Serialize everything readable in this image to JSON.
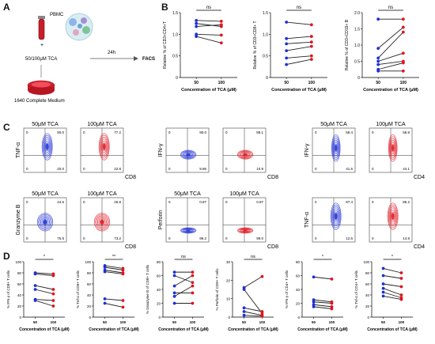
{
  "panels": {
    "A": "A",
    "B": "B",
    "C": "C",
    "D": "D"
  },
  "schematic": {
    "pbmc": "PBMC",
    "plus": "+",
    "tca": "50/100μM TCA",
    "medium": "1640 Complete Medium",
    "time": "24h",
    "facs": "FACS"
  },
  "colors": {
    "low": "#1f2fd6",
    "high": "#e0141e",
    "line": "#222222"
  },
  "chart_data": [
    {
      "type": "line",
      "panel": "B",
      "ylabel": "Relative % of CD3+CD4+T",
      "xlabel": "Concentration of TCA (μM)",
      "categories": [
        "50",
        "100"
      ],
      "ylim": [
        0,
        1.5
      ],
      "yticks": [
        "0",
        "0.5",
        "1.0",
        "1.5"
      ],
      "sig": "ns",
      "series": [
        {
          "values": [
            1.32,
            1.3
          ]
        },
        {
          "values": [
            1.25,
            1.18
          ]
        },
        {
          "values": [
            1.18,
            1.22
          ]
        },
        {
          "values": [
            1.0,
            0.98
          ]
        },
        {
          "values": [
            0.95,
            0.8
          ]
        }
      ]
    },
    {
      "type": "line",
      "panel": "B",
      "ylabel": "Relative % of CD3+CD8+ T",
      "xlabel": "Concentration of TCA (μM)",
      "categories": [
        "50",
        "100"
      ],
      "ylim": [
        0,
        1.5
      ],
      "yticks": [
        "0",
        "0.5",
        "1.0",
        "1.5"
      ],
      "sig": "ns",
      "series": [
        {
          "values": [
            1.28,
            1.22
          ]
        },
        {
          "values": [
            0.9,
            0.95
          ]
        },
        {
          "values": [
            0.78,
            0.82
          ]
        },
        {
          "values": [
            0.62,
            0.72
          ]
        },
        {
          "values": [
            0.45,
            0.5
          ]
        },
        {
          "values": [
            0.3,
            0.42
          ]
        }
      ]
    },
    {
      "type": "line",
      "panel": "B",
      "ylabel": "Relative % of CD3+CD19+ B",
      "xlabel": "Concentration of TCA (μM)",
      "categories": [
        "50",
        "100"
      ],
      "ylim": [
        0,
        2.0
      ],
      "yticks": [
        "0",
        "0.5",
        "1.0",
        "1.5",
        "2.0"
      ],
      "sig": "ns",
      "series": [
        {
          "values": [
            1.8,
            1.8
          ]
        },
        {
          "values": [
            0.9,
            1.55
          ]
        },
        {
          "values": [
            0.6,
            1.4
          ]
        },
        {
          "values": [
            0.5,
            0.75
          ]
        },
        {
          "values": [
            0.4,
            0.5
          ]
        },
        {
          "values": [
            0.25,
            0.45
          ]
        },
        {
          "values": [
            0.2,
            0.2
          ]
        }
      ]
    },
    {
      "type": "line",
      "panel": "D",
      "ylabel": "% IFN-γ of CD8+ T cells",
      "xlabel": "Concentration of TCA (μM)",
      "categories": [
        "50",
        "100"
      ],
      "ylim": [
        0,
        100
      ],
      "yticks": [
        "0",
        "20",
        "40",
        "60",
        "80",
        "100"
      ],
      "sig": "*",
      "series": [
        {
          "values": [
            80,
            78
          ]
        },
        {
          "values": [
            78,
            75
          ]
        },
        {
          "values": [
            57,
            50
          ]
        },
        {
          "values": [
            50,
            42
          ]
        },
        {
          "values": [
            32,
            30
          ]
        },
        {
          "values": [
            30,
            20
          ]
        }
      ]
    },
    {
      "type": "line",
      "panel": "D",
      "ylabel": "% Tnf-α of CD8+ T cells",
      "xlabel": "Concentration of TCA (μM)",
      "categories": [
        "50",
        "100"
      ],
      "ylim": [
        0,
        100
      ],
      "yticks": [
        "0",
        "20",
        "40",
        "60",
        "80",
        "100"
      ],
      "sig": "**",
      "series": [
        {
          "values": [
            93,
            88
          ]
        },
        {
          "values": [
            90,
            85
          ]
        },
        {
          "values": [
            85,
            80
          ]
        },
        {
          "values": [
            82,
            78
          ]
        },
        {
          "values": [
            33,
            30
          ]
        },
        {
          "values": [
            25,
            18
          ]
        }
      ]
    },
    {
      "type": "line",
      "panel": "D",
      "ylabel": "% Granzyme B of CD8+ T cells",
      "xlabel": "Concentration of TCA (μM)",
      "categories": [
        "50",
        "100"
      ],
      "ylim": [
        0,
        80
      ],
      "yticks": [
        "0",
        "20",
        "40",
        "60",
        "80"
      ],
      "sig": "ns",
      "series": [
        {
          "values": [
            65,
            65
          ]
        },
        {
          "values": [
            60,
            50
          ]
        },
        {
          "values": [
            45,
            60
          ]
        },
        {
          "values": [
            35,
            35
          ]
        },
        {
          "values": [
            30,
            45
          ]
        },
        {
          "values": [
            20,
            20
          ]
        }
      ]
    },
    {
      "type": "line",
      "panel": "D",
      "ylabel": "% Perforin of CD8+ T cells",
      "xlabel": "Concentration of TCA (μM)",
      "categories": [
        "50",
        "100"
      ],
      "ylim": [
        0,
        30
      ],
      "yticks": [
        "0",
        "10",
        "20",
        "30"
      ],
      "sig": "ns",
      "series": [
        {
          "values": [
            16,
            22
          ]
        },
        {
          "values": [
            15,
            2
          ]
        },
        {
          "values": [
            5,
            3
          ]
        },
        {
          "values": [
            3,
            1
          ]
        },
        {
          "values": [
            1,
            0.5
          ]
        }
      ]
    },
    {
      "type": "line",
      "panel": "D",
      "ylabel": "% IFN-γ of CD4+ T cells",
      "xlabel": "Concentration of TCA (μM)",
      "categories": [
        "50",
        "100"
      ],
      "ylim": [
        0,
        80
      ],
      "yticks": [
        "0",
        "20",
        "40",
        "60",
        "80"
      ],
      "sig": "*",
      "series": [
        {
          "values": [
            58,
            55
          ]
        },
        {
          "values": [
            25,
            22
          ]
        },
        {
          "values": [
            22,
            20
          ]
        },
        {
          "values": [
            18,
            15
          ]
        },
        {
          "values": [
            15,
            12
          ]
        }
      ]
    },
    {
      "type": "line",
      "panel": "D",
      "ylabel": "% Tnf-α of CD4+ T cells",
      "xlabel": "Concentration of TCA (μM)",
      "categories": [
        "50",
        "100"
      ],
      "ylim": [
        0,
        100
      ],
      "yticks": [
        "0",
        "20",
        "40",
        "60",
        "80",
        "100"
      ],
      "sig": "*",
      "series": [
        {
          "values": [
            88,
            80
          ]
        },
        {
          "values": [
            75,
            70
          ]
        },
        {
          "values": [
            60,
            55
          ]
        },
        {
          "values": [
            52,
            40
          ]
        },
        {
          "values": [
            45,
            35
          ]
        },
        {
          "values": [
            38,
            32
          ]
        }
      ]
    }
  ],
  "flow": [
    {
      "y_label": "TNF-α",
      "x_label": "CD8",
      "left": {
        "title": "50μM TCA",
        "q_ul": "0",
        "q_ur": "80.0",
        "q_ll": "0",
        "q_lr": "20.0"
      },
      "right": {
        "title": "100μM TCA",
        "q_ul": "0",
        "q_ur": "77.2",
        "q_ll": "0",
        "q_lr": "22.8"
      }
    },
    {
      "y_label": "IFN-γ",
      "x_label": "CD8",
      "left": {
        "title": "",
        "q_ul": "0",
        "q_ur": "90.0",
        "q_ll": "0",
        "q_lr": "9.96"
      },
      "right": {
        "title": "",
        "q_ul": "0",
        "q_ur": "89.1",
        "q_ll": "0",
        "q_lr": "10.9"
      }
    },
    {
      "y_label": "IFN-γ",
      "x_label": "CD4",
      "left": {
        "title": "50μM TCA",
        "q_ul": "0",
        "q_ur": "58.4",
        "q_ll": "0",
        "q_lr": "41.6"
      },
      "right": {
        "title": "100μM TCA",
        "q_ul": "0",
        "q_ur": "55.9",
        "q_ll": "0",
        "q_lr": "44.1"
      }
    },
    {
      "y_label": "Granzyme B",
      "x_label": "CD8",
      "left": {
        "title": "50μM TCA",
        "q_ul": "0",
        "q_ur": "24.5",
        "q_ll": "0",
        "q_lr": "75.5"
      },
      "right": {
        "title": "100μM TCA",
        "q_ul": "0",
        "q_ur": "26.8",
        "q_ll": "0",
        "q_lr": "73.2"
      }
    },
    {
      "y_label": "Perforin",
      "x_label": "CD8",
      "left": {
        "title": "50μM TCA",
        "q_ul": "0",
        "q_ur": "0.87",
        "q_ll": "0",
        "q_lr": "99.2"
      },
      "right": {
        "title": "100μM TCA",
        "q_ul": "0",
        "q_ur": "0.97",
        "q_ll": "0",
        "q_lr": "99.0"
      }
    },
    {
      "y_label": "TNF-α",
      "x_label": "CD4",
      "left": {
        "title": "",
        "q_ul": "0",
        "q_ur": "87.4",
        "q_ll": "0",
        "q_lr": "12.6"
      },
      "right": {
        "title": "",
        "q_ul": "0",
        "q_ur": "85.2",
        "q_ll": "0",
        "q_lr": "14.8"
      }
    }
  ],
  "flow_titles_mid_top": {
    "left": "50μM TCA",
    "right": "100μM TCA"
  },
  "flow_titles_right_bottom": {
    "left": "50μM TCA",
    "right": "100μM TCA"
  }
}
